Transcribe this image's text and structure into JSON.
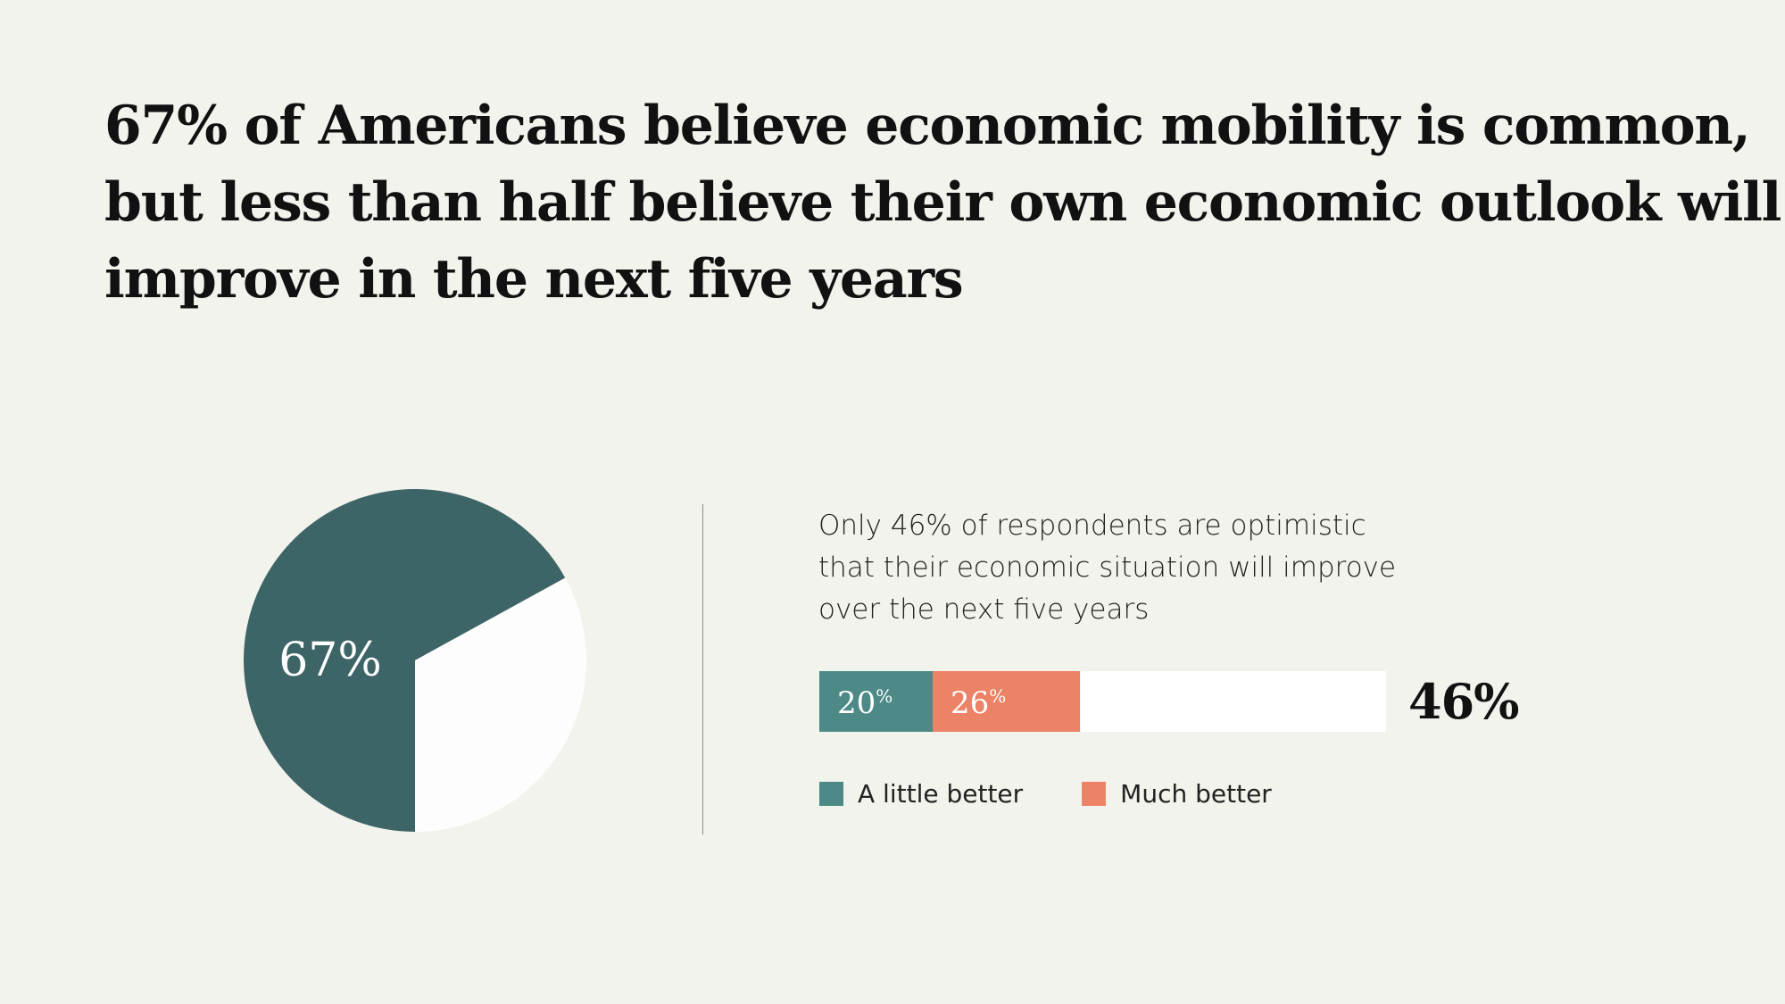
{
  "headline": {
    "line1": "67% of Americans believe economic mobility is common,",
    "line2": "but less than half believe their own economic outlook will",
    "line3": "improve in the next five years"
  },
  "subtitle": {
    "line1": "Only 46% of respondents are optimistic",
    "line2": "that their economic situation will improve",
    "line3": "over the next five years"
  },
  "colors": {
    "pie_main": "#3d6466",
    "pie_rest": "#fdfdfd",
    "little_better": "#4d8a87",
    "much_better": "#ec8266",
    "bar_rest": "#ffffff"
  },
  "chart_data": [
    {
      "type": "pie",
      "title": "",
      "slices": [
        {
          "label": "67%",
          "value": 67
        },
        {
          "label": "",
          "value": 33
        }
      ],
      "start_angle_deg": 180
    },
    {
      "type": "bar",
      "orientation": "horizontal-stacked",
      "title": "Only 46% of respondents are optimistic that their economic situation will improve over the next five years",
      "xlim": [
        0,
        100
      ],
      "series": [
        {
          "name": "A little better",
          "value": 20,
          "label": "20",
          "unit": "%"
        },
        {
          "name": "Much better",
          "value": 26,
          "label": "26",
          "unit": "%"
        }
      ],
      "total_label": "46%",
      "legend": [
        "A little better",
        "Much better"
      ],
      "legend_position": "bottom-left"
    }
  ]
}
